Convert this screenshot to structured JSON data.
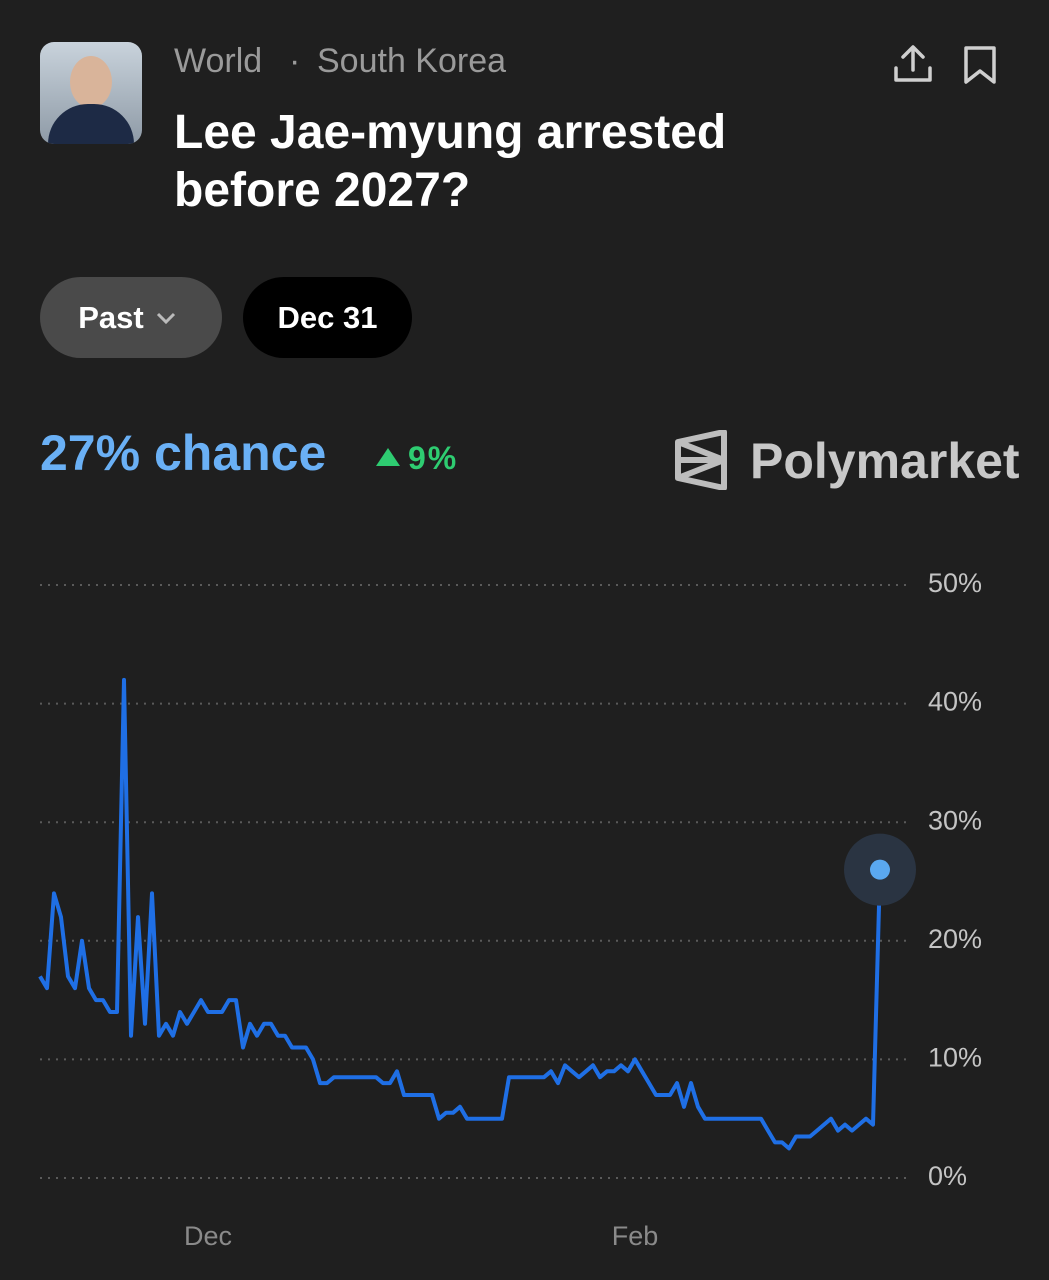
{
  "header": {
    "breadcrumb": [
      "World",
      "South Korea"
    ],
    "title": "Lee Jae-myung arrested before 2027?"
  },
  "filters": {
    "range": "Past",
    "date": "Dec 31"
  },
  "summary": {
    "chance": "27% chance",
    "change": "9%"
  },
  "brand": "Polymarket",
  "chart_data": {
    "type": "line",
    "color": "#1f6fe5",
    "grid": true,
    "categories": [
      null,
      null,
      null,
      null,
      null,
      null,
      null,
      null,
      null,
      null,
      null,
      null,
      null,
      null,
      null,
      null,
      null,
      null,
      null,
      null,
      null,
      null,
      null,
      null,
      "Dec",
      null,
      null,
      null,
      null,
      null,
      null,
      null,
      null,
      null,
      null,
      null,
      null,
      null,
      null,
      null,
      null,
      null,
      null,
      null,
      null,
      null,
      null,
      null,
      null,
      null,
      null,
      null,
      null,
      null,
      null,
      null,
      null,
      null,
      null,
      null,
      null,
      null,
      null,
      null,
      null,
      null,
      null,
      null,
      null,
      null,
      null,
      null,
      null,
      null,
      null,
      null,
      null,
      null,
      null,
      null,
      null,
      null,
      null,
      null,
      null,
      "Feb",
      null,
      null,
      null,
      null,
      null,
      null,
      null,
      null,
      null,
      null,
      null,
      null,
      null,
      null,
      null,
      null,
      null,
      null,
      null,
      null,
      null,
      null,
      null,
      null,
      null,
      null,
      null,
      null,
      null,
      null,
      null,
      null,
      null,
      null,
      null
    ],
    "values": [
      17,
      16,
      24,
      22,
      17,
      16,
      20,
      16,
      15,
      15,
      14,
      14,
      42,
      12,
      22,
      13,
      24,
      12,
      13,
      12,
      14,
      13,
      14,
      15,
      14,
      14,
      14,
      15,
      15,
      11,
      13,
      12,
      13,
      13,
      12,
      12,
      11,
      11,
      11,
      10,
      8,
      8,
      8.5,
      8.5,
      8.5,
      8.5,
      8.5,
      8.5,
      8.5,
      8,
      8,
      9,
      7,
      7,
      7,
      7,
      7,
      5,
      5.5,
      5.5,
      6,
      5,
      5,
      5,
      5,
      5,
      5,
      8.5,
      8.5,
      8.5,
      8.5,
      8.5,
      8.5,
      9,
      8,
      9.5,
      9,
      8.5,
      9,
      9.5,
      8.5,
      9,
      9,
      9.5,
      9,
      10,
      9,
      8,
      7,
      7,
      7,
      8,
      6,
      8,
      6,
      5,
      5,
      5,
      5,
      5,
      5,
      5,
      5,
      5,
      4,
      3,
      3,
      2.5,
      3.5,
      3.5,
      3.5,
      4,
      4.5,
      5,
      4,
      4.5,
      4,
      4.5,
      5,
      4.5,
      26
    ],
    "ylim": [
      0,
      50
    ],
    "yticks": [
      {
        "value": 0,
        "label": "0%"
      },
      {
        "value": 10,
        "label": "10%"
      },
      {
        "value": 20,
        "label": "20%"
      },
      {
        "value": 30,
        "label": "30%"
      },
      {
        "value": 40,
        "label": "40%"
      },
      {
        "value": 50,
        "label": "50%"
      }
    ]
  }
}
